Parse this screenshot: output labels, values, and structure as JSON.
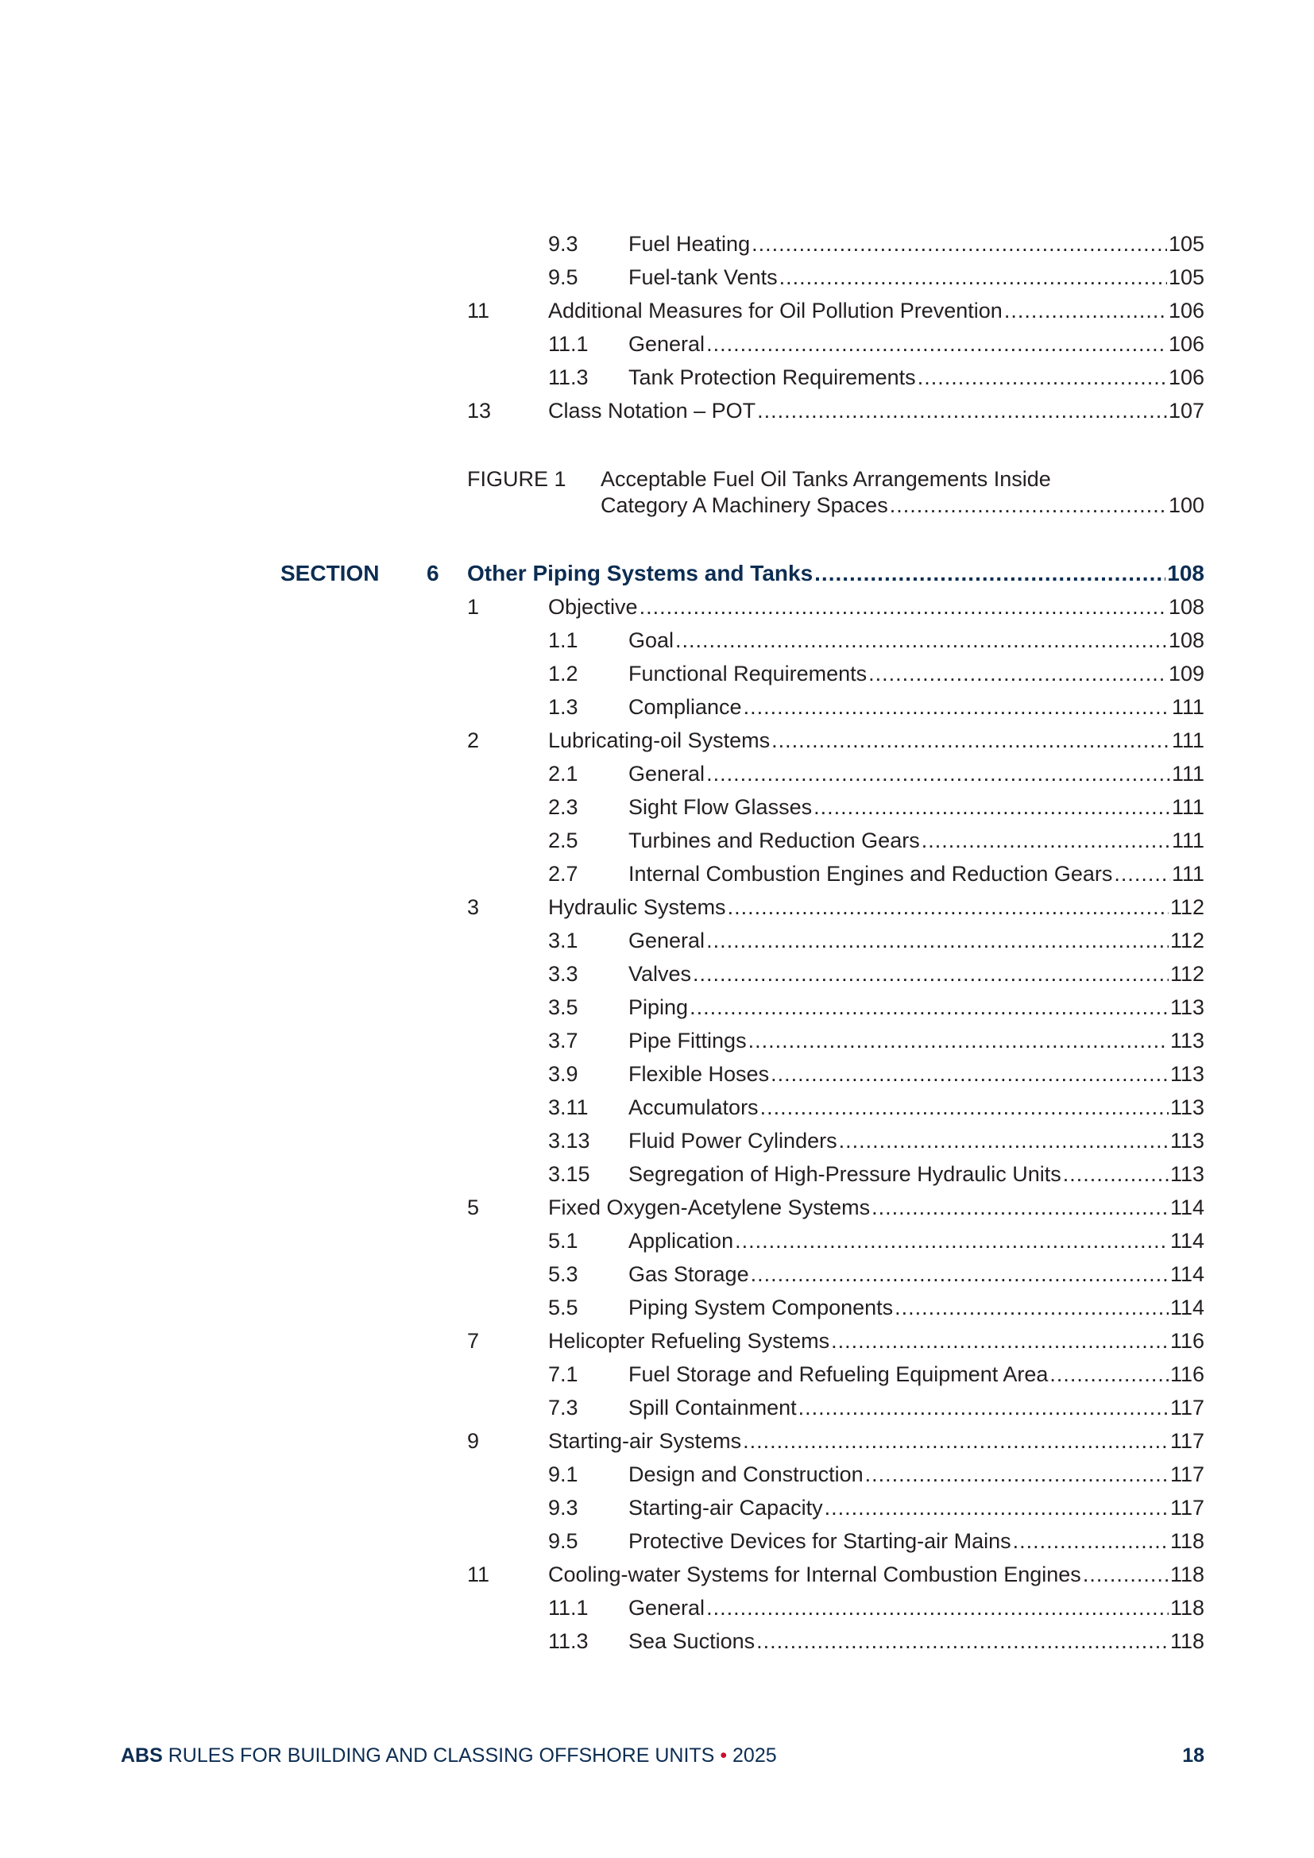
{
  "colors": {
    "accent": "#0c2d52",
    "bullet": "#c8102e",
    "text": "#231f20"
  },
  "top_entries": [
    {
      "level": 2,
      "num": "9.3",
      "title": "Fuel Heating",
      "page": "105"
    },
    {
      "level": 2,
      "num": "9.5",
      "title": "Fuel-tank Vents",
      "page": "105"
    },
    {
      "level": 1,
      "num": "11",
      "title": "Additional Measures for Oil Pollution Prevention ",
      "page": "106"
    },
    {
      "level": 2,
      "num": "11.1",
      "title": "General",
      "page": "106"
    },
    {
      "level": 2,
      "num": "11.3",
      "title": "Tank Protection Requirements",
      "page": "106"
    },
    {
      "level": 1,
      "num": "13",
      "title": "Class Notation – POT ",
      "page": "107"
    }
  ],
  "figure": {
    "label": "FIGURE 1",
    "title_line1": "Acceptable Fuel Oil Tanks Arrangements Inside",
    "title_line2": "Category A Machinery Spaces ",
    "page": "100"
  },
  "section": {
    "label": "SECTION",
    "number": "6",
    "title": "Other Piping Systems and Tanks",
    "page": "108"
  },
  "entries": [
    {
      "level": 1,
      "num": "1",
      "title": "Objective",
      "page": "108"
    },
    {
      "level": 2,
      "num": "1.1",
      "title": "Goal",
      "page": "108"
    },
    {
      "level": 2,
      "num": "1.2",
      "title": "Functional Requirements",
      "page": "109"
    },
    {
      "level": 2,
      "num": "1.3",
      "title": "Compliance",
      "page": "111"
    },
    {
      "level": 1,
      "num": "2",
      "title": "Lubricating-oil Systems ",
      "page": "111"
    },
    {
      "level": 2,
      "num": "2.1",
      "title": "General",
      "page": "111"
    },
    {
      "level": 2,
      "num": "2.3",
      "title": "Sight Flow Glasses",
      "page": "111"
    },
    {
      "level": 2,
      "num": "2.5",
      "title": "Turbines and Reduction Gears",
      "page": "111"
    },
    {
      "level": 2,
      "num": "2.7",
      "title": "Internal Combustion Engines and Reduction Gears",
      "page": "111"
    },
    {
      "level": 1,
      "num": "3",
      "title": "Hydraulic Systems ",
      "page": "112"
    },
    {
      "level": 2,
      "num": "3.1",
      "title": "General",
      "page": "112"
    },
    {
      "level": 2,
      "num": "3.3",
      "title": "Valves",
      "page": "112"
    },
    {
      "level": 2,
      "num": "3.5",
      "title": "Piping",
      "page": "113"
    },
    {
      "level": 2,
      "num": "3.7",
      "title": "Pipe Fittings",
      "page": "113"
    },
    {
      "level": 2,
      "num": "3.9",
      "title": "Flexible Hoses",
      "page": "113"
    },
    {
      "level": 2,
      "num": "3.11",
      "title": "Accumulators",
      "page": "113"
    },
    {
      "level": 2,
      "num": "3.13",
      "title": "Fluid Power Cylinders",
      "page": "113"
    },
    {
      "level": 2,
      "num": "3.15",
      "title": "Segregation of High-Pressure Hydraulic Units",
      "page": "113"
    },
    {
      "level": 1,
      "num": "5",
      "title": "Fixed Oxygen-Acetylene Systems ",
      "page": "114"
    },
    {
      "level": 2,
      "num": "5.1",
      "title": "Application",
      "page": "114"
    },
    {
      "level": 2,
      "num": "5.3",
      "title": "Gas Storage",
      "page": "114"
    },
    {
      "level": 2,
      "num": "5.5",
      "title": "Piping System Components",
      "page": "114"
    },
    {
      "level": 1,
      "num": "7",
      "title": "Helicopter Refueling Systems ",
      "page": "116"
    },
    {
      "level": 2,
      "num": "7.1",
      "title": "Fuel Storage and Refueling Equipment Area",
      "page": "116"
    },
    {
      "level": 2,
      "num": "7.3",
      "title": "Spill Containment",
      "page": "117"
    },
    {
      "level": 1,
      "num": "9",
      "title": "Starting-air Systems ",
      "page": "117"
    },
    {
      "level": 2,
      "num": "9.1",
      "title": "Design and Construction",
      "page": "117"
    },
    {
      "level": 2,
      "num": "9.3",
      "title": "Starting-air Capacity",
      "page": "117"
    },
    {
      "level": 2,
      "num": "9.5",
      "title": "Protective Devices for Starting-air Mains",
      "page": "118"
    },
    {
      "level": 1,
      "num": "11",
      "title": "Cooling-water Systems for Internal Combustion Engines",
      "page": "118"
    },
    {
      "level": 2,
      "num": "11.1",
      "title": "General",
      "page": "118"
    },
    {
      "level": 2,
      "num": "11.3",
      "title": "Sea Suctions",
      "page": "118"
    }
  ],
  "footer": {
    "brand": "ABS",
    "title": " RULES FOR BUILDING AND CLASSING OFFSHORE UNITS ",
    "bullet": "•",
    "year": " 2025",
    "page": "18"
  }
}
